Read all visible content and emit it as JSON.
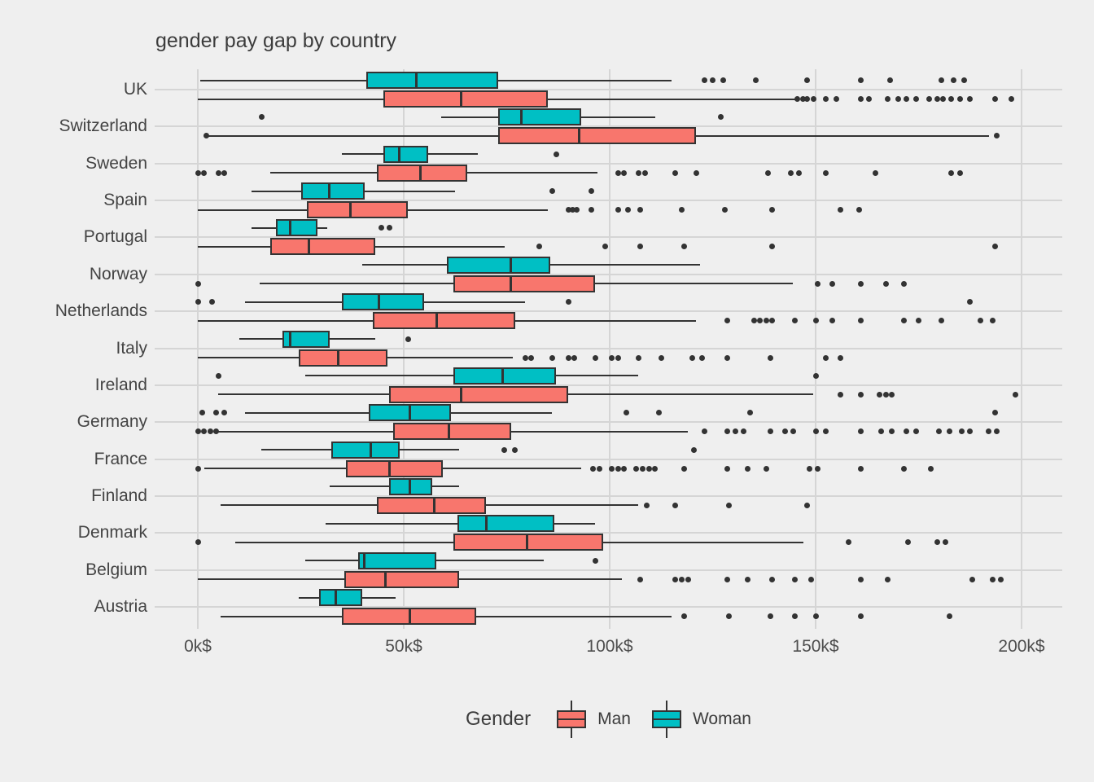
{
  "title": "gender pay gap by country",
  "colors": {
    "man": "#F8766D",
    "woman": "#00BFC4",
    "background": "#EFEFEF",
    "grid": "#D5D5D5",
    "stroke": "#333333",
    "outlier_dot": "#333333",
    "title_text": "#3C3C3C",
    "axis_text": "#4D4D4D"
  },
  "legend": {
    "title": "Gender",
    "items": [
      {
        "key": "man",
        "label": "Man"
      },
      {
        "key": "woman",
        "label": "Woman"
      }
    ]
  },
  "x_axis": {
    "tick_labels": [
      "0k$",
      "50k$",
      "100k$",
      "150k$",
      "200k$"
    ],
    "tick_values": [
      0,
      50,
      100,
      150,
      200
    ],
    "unit": "k$"
  },
  "chart_data": {
    "type": "boxplot",
    "orientation": "horizontal",
    "title": "gender pay gap by country",
    "xlabel": "",
    "ylabel": "",
    "xlim": [
      0,
      200
    ],
    "x_unit": "thousand dollars (k$)",
    "grid": "on",
    "legend_position": "bottom",
    "categories": [
      "UK",
      "Switzerland",
      "Sweden",
      "Spain",
      "Portugal",
      "Norway",
      "Netherlands",
      "Italy",
      "Ireland",
      "Germany",
      "France",
      "Finland",
      "Denmark",
      "Belgium",
      "Austria"
    ],
    "series": [
      {
        "name": "Woman",
        "color": "#00BFC4",
        "row_position": "top",
        "stats": [
          {
            "low": 0.5,
            "q1": 41,
            "median": 53,
            "q3": 73,
            "high": 115,
            "outliers": [
              123,
              125,
              127.5,
              135.5,
              148,
              161,
              168,
              180.5,
              183.5,
              186
            ]
          },
          {
            "low": 59,
            "q1": 73,
            "median": 78.5,
            "q3": 93,
            "high": 111,
            "outliers": [
              15.5,
              127
            ]
          },
          {
            "low": 35,
            "q1": 45,
            "median": 49,
            "q3": 56,
            "high": 68,
            "outliers": [
              87
            ]
          },
          {
            "low": 13,
            "q1": 25,
            "median": 32,
            "q3": 40.5,
            "high": 62.5,
            "outliers": [
              86,
              95.5
            ]
          },
          {
            "low": 13,
            "q1": 19,
            "median": 22.5,
            "q3": 29,
            "high": 31.5,
            "outliers": [
              44.5,
              46.5
            ]
          },
          {
            "low": 40,
            "q1": 60.5,
            "median": 76,
            "q3": 85.5,
            "high": 122,
            "outliers": []
          },
          {
            "low": 11.5,
            "q1": 35,
            "median": 44,
            "q3": 55,
            "high": 79.5,
            "outliers": [
              0,
              3.5,
              90,
              187.5
            ]
          },
          {
            "low": 10,
            "q1": 20.5,
            "median": 22.5,
            "q3": 32,
            "high": 43,
            "outliers": [
              51
            ]
          },
          {
            "low": 26,
            "q1": 62,
            "median": 74,
            "q3": 87,
            "high": 107,
            "outliers": [
              5,
              150
            ]
          },
          {
            "low": 11.5,
            "q1": 41.5,
            "median": 51.5,
            "q3": 61.5,
            "high": 86,
            "outliers": [
              1,
              4.5,
              6.5,
              104,
              112,
              134,
              193.5
            ]
          },
          {
            "low": 15.5,
            "q1": 32.5,
            "median": 42,
            "q3": 49,
            "high": 63.5,
            "outliers": [
              74.5,
              77,
              120.5
            ]
          },
          {
            "low": 32,
            "q1": 46.5,
            "median": 51.5,
            "q3": 57,
            "high": 63.5,
            "outliers": []
          },
          {
            "low": 31,
            "q1": 63,
            "median": 70,
            "q3": 86.5,
            "high": 96.5,
            "outliers": []
          },
          {
            "low": 26,
            "q1": 39,
            "median": 40.5,
            "q3": 58,
            "high": 84,
            "outliers": [
              96.5
            ]
          },
          {
            "low": 24.5,
            "q1": 29.5,
            "median": 33.5,
            "q3": 40,
            "high": 48,
            "outliers": []
          }
        ]
      },
      {
        "name": "Man",
        "color": "#F8766D",
        "row_position": "bottom",
        "stats": [
          {
            "low": 0,
            "q1": 45,
            "median": 64,
            "q3": 85,
            "high": 145,
            "outliers": [
              145.5,
              147,
              148,
              149.5,
              152.5,
              155,
              161,
              163,
              167.5,
              170,
              172,
              174.5,
              177.5,
              179.5,
              181,
              183,
              185,
              187.5,
              193.5,
              197.5
            ]
          },
          {
            "low": 2.5,
            "q1": 73,
            "median": 92.5,
            "q3": 121,
            "high": 192,
            "outliers": [
              2,
              194
            ]
          },
          {
            "low": 17.5,
            "q1": 43.5,
            "median": 54,
            "q3": 65.5,
            "high": 97,
            "outliers": [
              0,
              1.5,
              5,
              6.5,
              102,
              103.5,
              107,
              108.5,
              116,
              121,
              138.5,
              144,
              146,
              152.5,
              164.5,
              183,
              185
            ]
          },
          {
            "low": 0,
            "q1": 26.5,
            "median": 37,
            "q3": 51,
            "high": 85,
            "outliers": [
              90,
              91,
              92,
              95.5,
              102,
              104.5,
              107.5,
              117.5,
              128,
              139.5,
              156,
              160.5
            ]
          },
          {
            "low": 0,
            "q1": 17.5,
            "median": 27,
            "q3": 43,
            "high": 74.5,
            "outliers": [
              83,
              99,
              107.5,
              118,
              139.5,
              193.5
            ]
          },
          {
            "low": 15,
            "q1": 62,
            "median": 76,
            "q3": 96.5,
            "high": 144.5,
            "outliers": [
              0,
              150.5,
              154,
              161,
              167,
              171.5
            ]
          },
          {
            "low": 0,
            "q1": 42.5,
            "median": 58,
            "q3": 77,
            "high": 121,
            "outliers": [
              128.5,
              135,
              136.5,
              138,
              139.5,
              145,
              150,
              154,
              161,
              171.5,
              175,
              180.5,
              190,
              193
            ]
          },
          {
            "low": 0,
            "q1": 24.5,
            "median": 34,
            "q3": 46,
            "high": 76.5,
            "outliers": [
              79.5,
              81,
              86,
              90,
              91.5,
              96.5,
              100.5,
              102,
              107,
              112.5,
              120,
              122.5,
              128.5,
              139,
              152.5,
              156
            ]
          },
          {
            "low": 5,
            "q1": 46.5,
            "median": 64,
            "q3": 90,
            "high": 149.5,
            "outliers": [
              156,
              161,
              165.5,
              167,
              168.5,
              198.5
            ]
          },
          {
            "low": 5,
            "q1": 47.5,
            "median": 61,
            "q3": 76,
            "high": 119,
            "outliers": [
              0,
              1.5,
              3,
              4.5,
              123,
              128.5,
              130.5,
              132.5,
              139,
              142.5,
              144.5,
              150,
              152.5,
              161,
              166,
              168.5,
              172,
              174.5,
              180,
              182.5,
              185.5,
              187.5,
              192,
              194
            ]
          },
          {
            "low": 1.5,
            "q1": 36,
            "median": 46.5,
            "q3": 59.5,
            "high": 93,
            "outliers": [
              0,
              96,
              97.5,
              100.5,
              102,
              103.5,
              106.5,
              108,
              109.5,
              111,
              118,
              128.5,
              133.5,
              138,
              148.5,
              150.5,
              161,
              171.5,
              178
            ]
          },
          {
            "low": 5.5,
            "q1": 43.5,
            "median": 57.5,
            "q3": 70,
            "high": 107,
            "outliers": [
              109,
              116,
              129,
              148
            ]
          },
          {
            "low": 9,
            "q1": 62,
            "median": 80,
            "q3": 98.5,
            "high": 147,
            "outliers": [
              0,
              158,
              172.5,
              179.5,
              181.5
            ]
          },
          {
            "low": 0,
            "q1": 35.5,
            "median": 45.5,
            "q3": 63.5,
            "high": 103,
            "outliers": [
              107.5,
              116,
              117.5,
              119,
              128.5,
              133.5,
              139.5,
              145,
              149,
              161,
              167.5,
              188,
              193,
              195
            ]
          },
          {
            "low": 5.5,
            "q1": 35,
            "median": 51.5,
            "q3": 67.5,
            "high": 115,
            "outliers": [
              118,
              129,
              139,
              145,
              150,
              161,
              182.5
            ]
          }
        ]
      }
    ]
  }
}
